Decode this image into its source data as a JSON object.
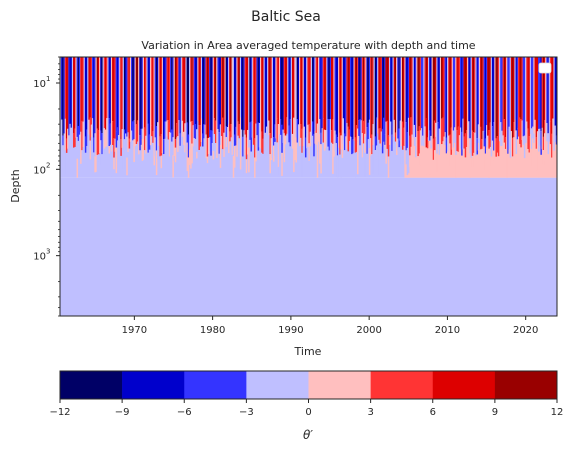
{
  "figure": {
    "suptitle": "Baltic Sea",
    "title": "Variation in Area averaged temperature with depth and time"
  },
  "chart_data": {
    "type": "heatmap",
    "title": "Variation in Area averaged temperature with depth and time",
    "xlabel": "Time",
    "ylabel": "Depth",
    "y_scale": "log",
    "y_inverted": true,
    "xlim": [
      1960.5,
      2024.0
    ],
    "ylim": [
      5,
      5000
    ],
    "x_ticks": [
      1970,
      1980,
      1990,
      2000,
      2010,
      2020
    ],
    "y_ticks": [
      10,
      100,
      1000
    ],
    "y_tick_labels": [
      {
        "base": "10",
        "exp": "1"
      },
      {
        "base": "10",
        "exp": "2"
      },
      {
        "base": "10",
        "exp": "3"
      }
    ],
    "colorbar": {
      "label": "θ′",
      "levels": [
        -12,
        -9,
        -6,
        -3,
        0,
        3,
        6,
        9,
        12
      ],
      "tick_labels": [
        "−12",
        "−9",
        "−6",
        "−3",
        "0",
        "3",
        "6",
        "9",
        "12"
      ],
      "colors": [
        "#000066",
        "#0000cc",
        "#3434ff",
        "#bfbfff",
        "#ffbfbf",
        "#ff3434",
        "#dd0000",
        "#990000"
      ]
    },
    "depth_layers": [
      {
        "depth_range": [
          5,
          30
        ],
        "description": "strong seasonal cycle, anomaly between −9 and +12"
      },
      {
        "depth_range": [
          30,
          125
        ],
        "description": "weak anomaly between −3 and +3; warmer (0 to 3) after 2005"
      },
      {
        "depth_range": [
          125,
          5000
        ],
        "value_range": [
          -3,
          0
        ]
      }
    ],
    "legend": {
      "placement": "top-right",
      "entries": []
    }
  }
}
